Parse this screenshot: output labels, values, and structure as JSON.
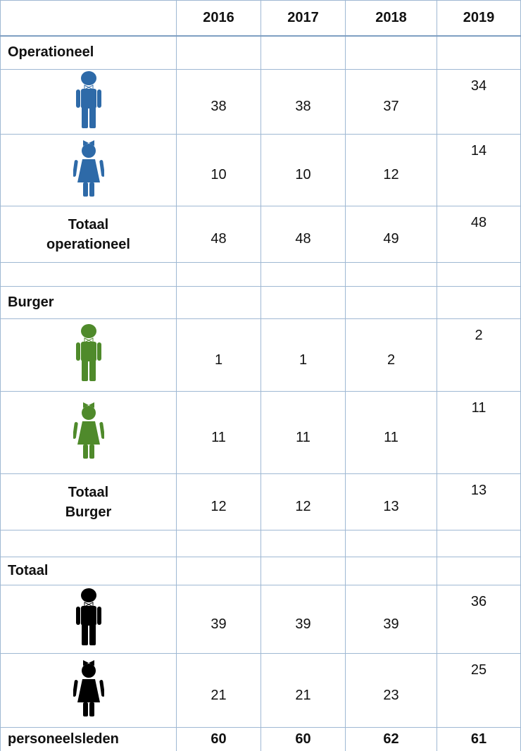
{
  "table": {
    "years": [
      "2016",
      "2017",
      "2018",
      "2019"
    ],
    "sections": [
      {
        "title": "Operationeel",
        "rows": [
          {
            "icon": "male",
            "color": "#2e6aa8",
            "values": [
              38,
              38,
              37,
              34
            ]
          },
          {
            "icon": "female",
            "color": "#2e6aa8",
            "values": [
              10,
              10,
              12,
              14
            ]
          },
          {
            "label": "Totaal operationeel",
            "values": [
              48,
              48,
              49,
              48
            ]
          }
        ]
      },
      {
        "title": "Burger",
        "rows": [
          {
            "icon": "male",
            "color": "#4f8a2b",
            "values": [
              1,
              1,
              2,
              2
            ]
          },
          {
            "icon": "female",
            "color": "#4f8a2b",
            "values": [
              11,
              11,
              11,
              11
            ]
          },
          {
            "label": "Totaal Burger",
            "values": [
              12,
              12,
              13,
              13
            ]
          }
        ]
      },
      {
        "title": "Totaal",
        "rows": [
          {
            "icon": "male",
            "color": "#000000",
            "values": [
              39,
              39,
              39,
              36
            ]
          },
          {
            "icon": "female",
            "color": "#000000",
            "values": [
              21,
              21,
              23,
              25
            ]
          },
          {
            "label": "personeelsleden",
            "bold": true,
            "values": [
              60,
              60,
              62,
              61
            ]
          }
        ]
      }
    ]
  }
}
